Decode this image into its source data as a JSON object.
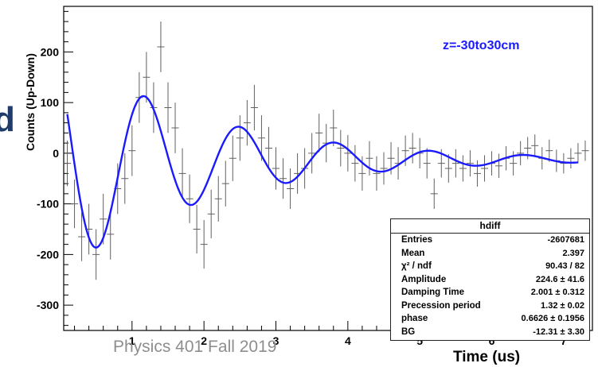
{
  "slide": {
    "edge_text": "d",
    "footer": "Physics 401 Fall 2019"
  },
  "stats": {
    "title": "hdiff",
    "rows": [
      {
        "label": "Entries",
        "value": "-2607681"
      },
      {
        "label": "Mean",
        "value": "2.397"
      },
      {
        "label": "χ² / ndf",
        "value": "90.43 / 82"
      },
      {
        "label": "Amplitude",
        "value": "224.6 ± 41.6"
      },
      {
        "label": "Damping Time",
        "value": "2.001 ± 0.312"
      },
      {
        "label": "Precession period",
        "value": "1.32 ± 0.02"
      },
      {
        "label": "phase",
        "value": "0.6626 ± 0.1956"
      },
      {
        "label": "BG",
        "value": "-12.31 ± 3.30"
      }
    ]
  },
  "chart_data": {
    "type": "scatter",
    "annotation": "z=-30to30cm",
    "xlabel": "Time (us)",
    "ylabel": "Counts (Up-Down)",
    "xlim": [
      0.05,
      7.4
    ],
    "ylim": [
      -350,
      290
    ],
    "xticks": [
      1,
      2,
      3,
      4,
      5,
      6,
      7
    ],
    "yticks": [
      -300,
      -200,
      -100,
      0,
      100,
      200
    ],
    "grid": false,
    "colors": {
      "fit": "#1a1aff",
      "data": "#606060",
      "annotation": "#1a1aff"
    },
    "fit": {
      "amplitude": 224.6,
      "tau": 2.001,
      "period": 1.32,
      "phase": 0.6626,
      "bg": -12.31,
      "x_start": 0.1
    },
    "points": [
      {
        "x": 0.1,
        "y": -20,
        "e": 45
      },
      {
        "x": 0.2,
        "y": -100,
        "e": 48
      },
      {
        "x": 0.3,
        "y": -165,
        "e": 48
      },
      {
        "x": 0.4,
        "y": -150,
        "e": 50
      },
      {
        "x": 0.5,
        "y": -200,
        "e": 50
      },
      {
        "x": 0.6,
        "y": -130,
        "e": 50
      },
      {
        "x": 0.7,
        "y": -160,
        "e": 50
      },
      {
        "x": 0.8,
        "y": -70,
        "e": 50
      },
      {
        "x": 0.9,
        "y": -50,
        "e": 50
      },
      {
        "x": 1.0,
        "y": 5,
        "e": 50
      },
      {
        "x": 1.1,
        "y": 110,
        "e": 50
      },
      {
        "x": 1.2,
        "y": 150,
        "e": 50
      },
      {
        "x": 1.3,
        "y": 90,
        "e": 50
      },
      {
        "x": 1.4,
        "y": 210,
        "e": 50
      },
      {
        "x": 1.5,
        "y": 90,
        "e": 50
      },
      {
        "x": 1.6,
        "y": 50,
        "e": 50
      },
      {
        "x": 1.7,
        "y": -40,
        "e": 50
      },
      {
        "x": 1.8,
        "y": -90,
        "e": 48
      },
      {
        "x": 1.9,
        "y": -150,
        "e": 48
      },
      {
        "x": 2.0,
        "y": -180,
        "e": 48
      },
      {
        "x": 2.1,
        "y": -120,
        "e": 48
      },
      {
        "x": 2.2,
        "y": -90,
        "e": 45
      },
      {
        "x": 2.3,
        "y": -60,
        "e": 45
      },
      {
        "x": 2.4,
        "y": -10,
        "e": 45
      },
      {
        "x": 2.5,
        "y": 30,
        "e": 45
      },
      {
        "x": 2.6,
        "y": 60,
        "e": 45
      },
      {
        "x": 2.7,
        "y": 90,
        "e": 45
      },
      {
        "x": 2.8,
        "y": 30,
        "e": 45
      },
      {
        "x": 2.9,
        "y": 10,
        "e": 42
      },
      {
        "x": 3.0,
        "y": -30,
        "e": 42
      },
      {
        "x": 3.1,
        "y": -50,
        "e": 40
      },
      {
        "x": 3.2,
        "y": -70,
        "e": 40
      },
      {
        "x": 3.3,
        "y": -40,
        "e": 40
      },
      {
        "x": 3.4,
        "y": -30,
        "e": 40
      },
      {
        "x": 3.5,
        "y": 0,
        "e": 40
      },
      {
        "x": 3.6,
        "y": 40,
        "e": 38
      },
      {
        "x": 3.7,
        "y": 20,
        "e": 38
      },
      {
        "x": 3.8,
        "y": 50,
        "e": 36
      },
      {
        "x": 3.9,
        "y": 10,
        "e": 36
      },
      {
        "x": 4.0,
        "y": 0,
        "e": 36
      },
      {
        "x": 4.1,
        "y": -20,
        "e": 36
      },
      {
        "x": 4.2,
        "y": -40,
        "e": 34
      },
      {
        "x": 4.3,
        "y": -10,
        "e": 34
      },
      {
        "x": 4.4,
        "y": -40,
        "e": 34
      },
      {
        "x": 4.5,
        "y": -30,
        "e": 32
      },
      {
        "x": 4.6,
        "y": -10,
        "e": 32
      },
      {
        "x": 4.7,
        "y": -20,
        "e": 32
      },
      {
        "x": 4.8,
        "y": 5,
        "e": 30
      },
      {
        "x": 4.9,
        "y": 10,
        "e": 30
      },
      {
        "x": 5.0,
        "y": 0,
        "e": 30
      },
      {
        "x": 5.1,
        "y": -20,
        "e": 30
      },
      {
        "x": 5.2,
        "y": -80,
        "e": 30
      },
      {
        "x": 5.3,
        "y": -20,
        "e": 28
      },
      {
        "x": 5.4,
        "y": -30,
        "e": 28
      },
      {
        "x": 5.5,
        "y": -20,
        "e": 28
      },
      {
        "x": 5.6,
        "y": -30,
        "e": 26
      },
      {
        "x": 5.7,
        "y": -20,
        "e": 26
      },
      {
        "x": 5.8,
        "y": -40,
        "e": 26
      },
      {
        "x": 5.9,
        "y": -30,
        "e": 26
      },
      {
        "x": 6.0,
        "y": -20,
        "e": 24
      },
      {
        "x": 6.1,
        "y": -25,
        "e": 24
      },
      {
        "x": 6.2,
        "y": -10,
        "e": 24
      },
      {
        "x": 6.3,
        "y": -20,
        "e": 24
      },
      {
        "x": 6.4,
        "y": 0,
        "e": 24
      },
      {
        "x": 6.5,
        "y": 10,
        "e": 22
      },
      {
        "x": 6.6,
        "y": 15,
        "e": 22
      },
      {
        "x": 6.7,
        "y": -10,
        "e": 22
      },
      {
        "x": 6.8,
        "y": 5,
        "e": 22
      },
      {
        "x": 6.9,
        "y": -15,
        "e": 22
      },
      {
        "x": 7.0,
        "y": -20,
        "e": 20
      },
      {
        "x": 7.1,
        "y": -10,
        "e": 20
      },
      {
        "x": 7.2,
        "y": 0,
        "e": 20
      },
      {
        "x": 7.3,
        "y": 5,
        "e": 20
      }
    ]
  }
}
